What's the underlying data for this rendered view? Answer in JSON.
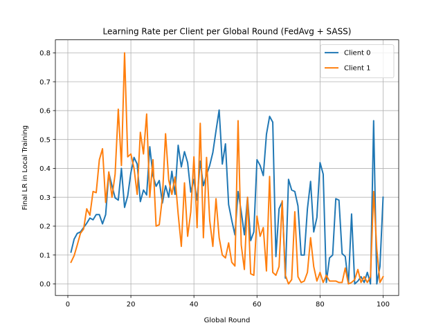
{
  "chart_data": {
    "type": "line",
    "title": "Learning Rate per Client per Global Round (FedAvg + SASS)",
    "xlabel": "Global Round",
    "ylabel": "Final LR in Local Training",
    "xlim": [
      -3.95,
      104.95
    ],
    "ylim": [
      -0.04,
      0.845
    ],
    "xticks": [
      0,
      20,
      40,
      60,
      80,
      100
    ],
    "yticks": [
      0.0,
      0.1,
      0.2,
      0.3,
      0.4,
      0.5,
      0.6,
      0.7,
      0.8
    ],
    "ytick_labels": [
      "0.0",
      "0.1",
      "0.2",
      "0.3",
      "0.4",
      "0.5",
      "0.6",
      "0.7",
      "0.8"
    ],
    "grid": true,
    "legend_position": "upper right",
    "x": [
      1,
      2,
      3,
      4,
      5,
      6,
      7,
      8,
      9,
      10,
      11,
      12,
      13,
      14,
      15,
      16,
      17,
      18,
      19,
      20,
      21,
      22,
      23,
      24,
      25,
      26,
      27,
      28,
      29,
      30,
      31,
      32,
      33,
      34,
      35,
      36,
      37,
      38,
      39,
      40,
      41,
      42,
      43,
      44,
      45,
      46,
      47,
      48,
      49,
      50,
      51,
      52,
      53,
      54,
      55,
      56,
      57,
      58,
      59,
      60,
      61,
      62,
      63,
      64,
      65,
      66,
      67,
      68,
      69,
      70,
      71,
      72,
      73,
      74,
      75,
      76,
      77,
      78,
      79,
      80,
      81,
      82,
      83,
      84,
      85,
      86,
      87,
      88,
      89,
      90,
      91,
      92,
      93,
      94,
      95,
      96,
      97,
      98,
      99,
      100
    ],
    "series": [
      {
        "name": "Client 0",
        "color": "#1f77b4",
        "values": [
          0.11,
          0.155,
          0.175,
          0.18,
          0.195,
          0.21,
          0.228,
          0.222,
          0.24,
          0.24,
          0.208,
          0.24,
          0.385,
          0.34,
          0.298,
          0.29,
          0.4,
          0.265,
          0.305,
          0.385,
          0.438,
          0.415,
          0.285,
          0.325,
          0.308,
          0.475,
          0.375,
          0.338,
          0.358,
          0.28,
          0.34,
          0.3,
          0.39,
          0.31,
          0.48,
          0.405,
          0.458,
          0.42,
          0.318,
          0.362,
          0.29,
          0.425,
          0.34,
          0.378,
          0.41,
          0.455,
          0.53,
          0.602,
          0.415,
          0.485,
          0.275,
          0.22,
          0.17,
          0.32,
          0.25,
          0.17,
          0.3,
          0.15,
          0.18,
          0.43,
          0.41,
          0.375,
          0.518,
          0.58,
          0.56,
          0.095,
          0.26,
          0.285,
          0.02,
          0.362,
          0.325,
          0.32,
          0.27,
          0.1,
          0.1,
          0.26,
          0.355,
          0.18,
          0.23,
          0.42,
          0.38,
          0.005,
          0.09,
          0.1,
          0.295,
          0.29,
          0.105,
          0.095,
          0.0,
          0.242,
          0.0,
          0.01,
          0.025,
          0.005,
          0.04,
          0.0,
          0.565,
          0.0,
          0.06,
          0.3
        ]
      },
      {
        "name": "Client 1",
        "color": "#ff7f0e",
        "values": [
          0.075,
          0.098,
          0.135,
          0.175,
          0.19,
          0.26,
          0.238,
          0.32,
          0.316,
          0.43,
          0.468,
          0.282,
          0.388,
          0.3,
          0.38,
          0.605,
          0.41,
          0.8,
          0.44,
          0.45,
          0.4,
          0.31,
          0.525,
          0.45,
          0.588,
          0.3,
          0.43,
          0.2,
          0.205,
          0.3,
          0.52,
          0.36,
          0.31,
          0.37,
          0.242,
          0.13,
          0.35,
          0.165,
          0.25,
          0.44,
          0.195,
          0.556,
          0.16,
          0.438,
          0.22,
          0.13,
          0.295,
          0.16,
          0.1,
          0.09,
          0.142,
          0.075,
          0.062,
          0.565,
          0.135,
          0.05,
          0.3,
          0.035,
          0.03,
          0.235,
          0.165,
          0.195,
          0.045,
          0.372,
          0.04,
          0.03,
          0.06,
          0.288,
          0.03,
          0.0,
          0.015,
          0.25,
          0.025,
          0.005,
          0.01,
          0.04,
          0.16,
          0.06,
          0.01,
          0.04,
          0.005,
          0.03,
          0.01,
          0.01,
          0.01,
          0.005,
          0.005,
          0.055,
          0.0,
          0.005,
          0.015,
          0.05,
          0.005,
          0.025,
          0.005,
          0.025,
          0.32,
          0.12,
          0.005,
          0.025
        ]
      }
    ]
  }
}
